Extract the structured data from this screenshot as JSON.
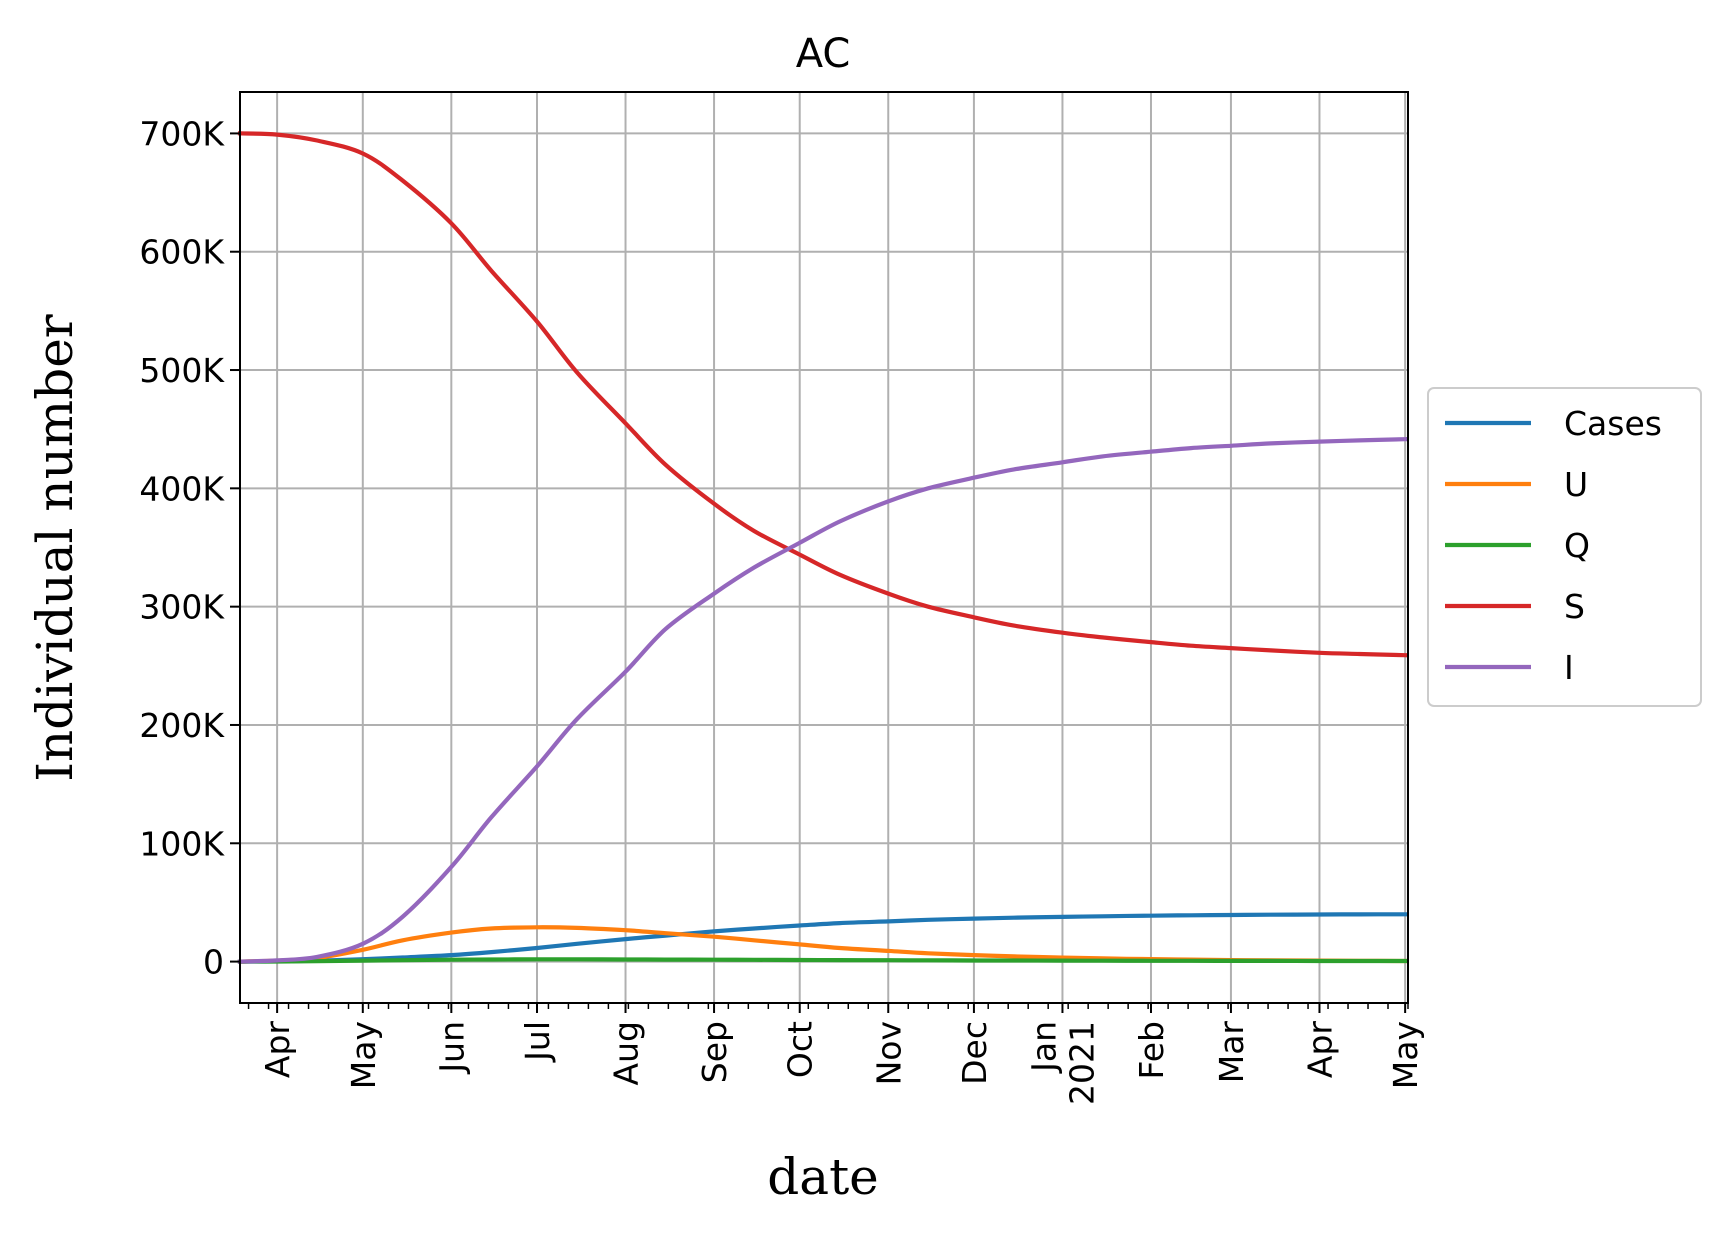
{
  "chart_data": {
    "type": "line",
    "title": "AC",
    "xlabel": "date",
    "ylabel": "Individual number",
    "x_ticks": [
      {
        "date": "2020-04-01",
        "label": "Apr"
      },
      {
        "date": "2020-05-01",
        "label": "May"
      },
      {
        "date": "2020-06-01",
        "label": "Jun"
      },
      {
        "date": "2020-07-01",
        "label": "Jul"
      },
      {
        "date": "2020-08-01",
        "label": "Aug"
      },
      {
        "date": "2020-09-01",
        "label": "Sep"
      },
      {
        "date": "2020-10-01",
        "label": "Oct"
      },
      {
        "date": "2020-11-01",
        "label": "Nov"
      },
      {
        "date": "2020-12-01",
        "label": "Dec"
      },
      {
        "date": "2021-01-01",
        "label": "Jan\n2021"
      },
      {
        "date": "2021-02-01",
        "label": "Feb"
      },
      {
        "date": "2021-03-01",
        "label": "Mar"
      },
      {
        "date": "2021-04-01",
        "label": "Apr"
      },
      {
        "date": "2021-05-01",
        "label": "May"
      }
    ],
    "xlim": [
      "2020-03-19",
      "2021-05-02"
    ],
    "y_ticks": [
      {
        "value": 0,
        "label": "0"
      },
      {
        "value": 100000,
        "label": "100K"
      },
      {
        "value": 200000,
        "label": "200K"
      },
      {
        "value": 300000,
        "label": "300K"
      },
      {
        "value": 400000,
        "label": "400K"
      },
      {
        "value": 500000,
        "label": "500K"
      },
      {
        "value": 600000,
        "label": "600K"
      },
      {
        "value": 700000,
        "label": "700K"
      }
    ],
    "ylim": [
      -35000,
      735000
    ],
    "grid": true,
    "legend_position": "right, outside plot",
    "x": [
      "2020-03-19",
      "2020-04-01",
      "2020-04-15",
      "2020-05-01",
      "2020-05-15",
      "2020-06-01",
      "2020-06-15",
      "2020-07-01",
      "2020-07-15",
      "2020-08-01",
      "2020-08-15",
      "2020-09-01",
      "2020-09-15",
      "2020-10-01",
      "2020-10-15",
      "2020-11-01",
      "2020-11-15",
      "2020-12-01",
      "2020-12-15",
      "2021-01-01",
      "2021-01-15",
      "2021-02-01",
      "2021-02-15",
      "2021-03-01",
      "2021-03-15",
      "2021-04-01",
      "2021-04-15",
      "2021-05-01"
    ],
    "series": [
      {
        "name": "Cases",
        "color": "#1f77b4",
        "values": [
          0,
          200,
          800,
          2000,
          3500,
          5500,
          8000,
          11500,
          15000,
          19000,
          22000,
          25500,
          28000,
          30500,
          32500,
          34000,
          35300,
          36300,
          37100,
          37800,
          38300,
          38800,
          39100,
          39400,
          39600,
          39800,
          39900,
          40000
        ]
      },
      {
        "name": "U",
        "color": "#ff7f0e",
        "values": [
          0,
          800,
          3000,
          10000,
          18000,
          24500,
          28000,
          29000,
          28500,
          26500,
          24000,
          21000,
          18000,
          14500,
          11500,
          9000,
          7000,
          5500,
          4400,
          3400,
          2700,
          2100,
          1700,
          1300,
          1050,
          800,
          650,
          500
        ]
      },
      {
        "name": "Q",
        "color": "#2ca02c",
        "values": [
          0,
          100,
          300,
          800,
          1200,
          1600,
          1800,
          1900,
          1900,
          1800,
          1700,
          1600,
          1500,
          1350,
          1250,
          1150,
          1050,
          950,
          880,
          800,
          740,
          680,
          630,
          590,
          560,
          520,
          500,
          480
        ]
      },
      {
        "name": "S",
        "color": "#d62728",
        "values": [
          700000,
          699000,
          694000,
          683000,
          660000,
          624000,
          584000,
          541000,
          498000,
          455000,
          420000,
          387000,
          364000,
          344000,
          327000,
          311000,
          300000,
          291000,
          284000,
          278000,
          274000,
          270000,
          267000,
          265000,
          263000,
          261000,
          260000,
          259000
        ]
      },
      {
        "name": "I",
        "color": "#9467bd",
        "values": [
          0,
          1000,
          4000,
          15000,
          38000,
          80000,
          122000,
          165000,
          205000,
          245000,
          281000,
          311000,
          333000,
          354000,
          372000,
          389000,
          400000,
          409000,
          416000,
          422000,
          427000,
          431000,
          434000,
          436000,
          438000,
          439500,
          440500,
          441500
        ]
      }
    ]
  }
}
